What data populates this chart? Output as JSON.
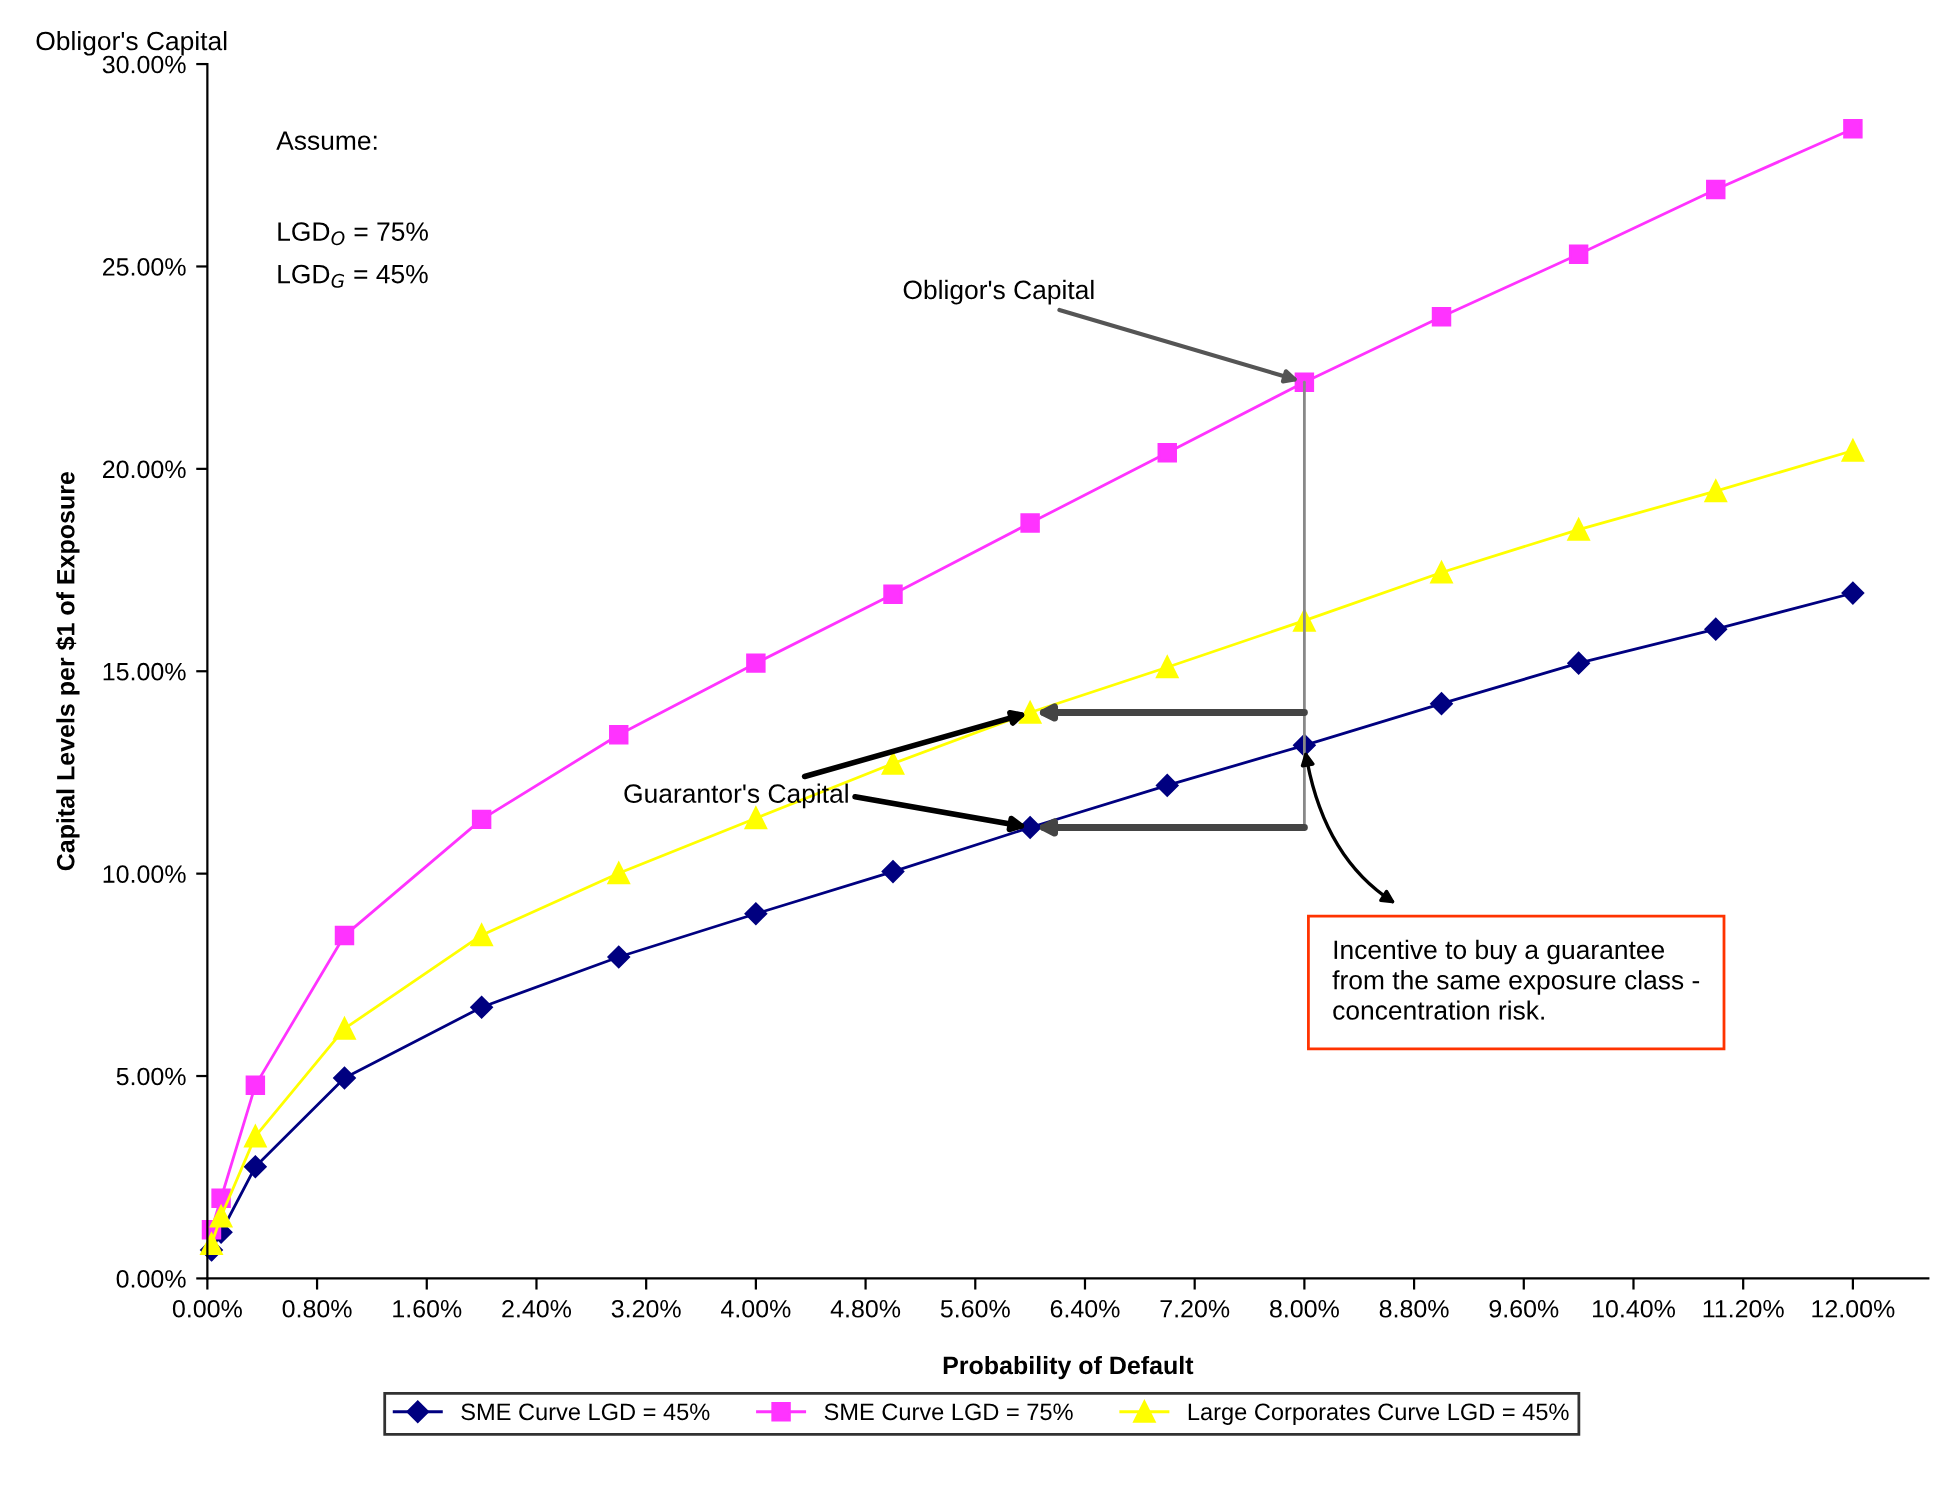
{
  "chart_data": {
    "type": "line",
    "xlabel": "Probability of Default",
    "ylabel": "Capital Levels per $1 of Exposure",
    "series": [
      {
        "name": "SME Curve LGD = 45%",
        "color": "#000080",
        "marker": "diamond",
        "x": [
          0.03,
          0.1,
          0.35,
          1,
          2,
          3,
          4,
          5,
          6,
          7,
          8,
          9,
          10,
          11,
          12
        ],
        "values": [
          0.7,
          1.14,
          2.76,
          4.95,
          6.7,
          7.94,
          9.01,
          10.05,
          11.14,
          12.18,
          13.17,
          14.2,
          15.2,
          16.04,
          16.93
        ]
      },
      {
        "name": "SME Curve LGD = 75%",
        "color": "#ff33ff",
        "marker": "square",
        "x": [
          0.03,
          0.1,
          0.35,
          1,
          2,
          3,
          4,
          5,
          6,
          7,
          8,
          9,
          10,
          11,
          12
        ],
        "values": [
          1.2,
          1.98,
          4.77,
          8.47,
          11.34,
          13.43,
          15.2,
          16.9,
          18.66,
          20.4,
          22.14,
          23.76,
          25.3,
          26.9,
          28.4
        ]
      },
      {
        "name": "Large Corporates Curve LGD = 45%",
        "color": "#ffff00",
        "marker": "triangle",
        "x": [
          0.03,
          0.1,
          0.35,
          1,
          2,
          3,
          4,
          5,
          6,
          7,
          8,
          9,
          10,
          11,
          12
        ],
        "values": [
          0.85,
          1.53,
          3.51,
          6.17,
          8.48,
          10.01,
          11.37,
          12.72,
          13.98,
          15.1,
          16.25,
          17.44,
          18.5,
          19.45,
          20.45
        ]
      }
    ],
    "xlim": [
      0,
      12.55
    ],
    "ylim": [
      0,
      30
    ],
    "xticks": [
      {
        "value": 0,
        "label": "0.00%"
      },
      {
        "value": 0.8,
        "label": "0.80%"
      },
      {
        "value": 1.6,
        "label": "1.60%"
      },
      {
        "value": 2.4,
        "label": "2.40%"
      },
      {
        "value": 3.2,
        "label": "3.20%"
      },
      {
        "value": 4.0,
        "label": "4.00%"
      },
      {
        "value": 4.8,
        "label": "4.80%"
      },
      {
        "value": 5.6,
        "label": "5.60%"
      },
      {
        "value": 6.4,
        "label": "6.40%"
      },
      {
        "value": 7.2,
        "label": "7.20%"
      },
      {
        "value": 8.0,
        "label": "8.00%"
      },
      {
        "value": 8.8,
        "label": "8.80%"
      },
      {
        "value": 9.6,
        "label": "9.60%"
      },
      {
        "value": 10.4,
        "label": "10.40%"
      },
      {
        "value": 11.2,
        "label": "11.20%"
      },
      {
        "value": 12.0,
        "label": "12.00%"
      }
    ],
    "yticks": [
      {
        "value": 0,
        "label": "0.00%"
      },
      {
        "value": 5,
        "label": "5.00%"
      },
      {
        "value": 10,
        "label": "10.00%"
      },
      {
        "value": 15,
        "label": "15.00%"
      },
      {
        "value": 20,
        "label": "20.00%"
      },
      {
        "value": 25,
        "label": "25.00%"
      },
      {
        "value": 30,
        "label": "30.00%"
      }
    ],
    "grid": false,
    "legend": "bottom",
    "line_style": "solid",
    "annotations": [
      "Obligor's Capital",
      "Assume:",
      "LGD$_{O}$ = 75%",
      "LGD$_{G}$ = 45%",
      {
        "text": "Obligor's Capital",
        "x": 8,
        "y": 22.14
      },
      {
        "text": "Guarantor's Capital",
        "x": 6,
        "y": 13.98
      },
      "Incentive to buy a guarantee from the same exposure class - concentration risk."
    ]
  }
}
